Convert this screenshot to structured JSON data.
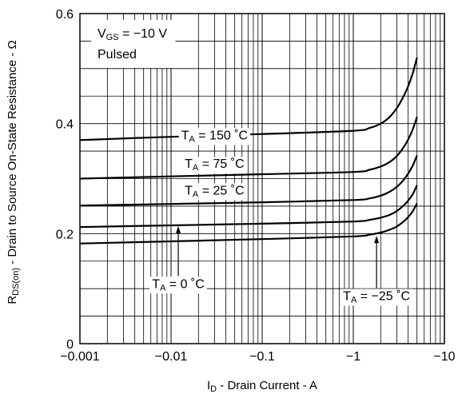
{
  "chart_data": {
    "type": "line",
    "x_scale": "log",
    "x_reversed_sign": true,
    "xlim": [
      -0.001,
      -10
    ],
    "ylim": [
      0,
      0.6
    ],
    "grid": true,
    "x_ticks": [
      {
        "value": -0.001,
        "label": "−0.001"
      },
      {
        "value": -0.01,
        "label": "−0.01"
      },
      {
        "value": -0.1,
        "label": "−0.1"
      },
      {
        "value": -1,
        "label": "−1"
      },
      {
        "value": -10,
        "label": "−10"
      }
    ],
    "y_ticks": [
      {
        "value": 0,
        "label": "0"
      },
      {
        "value": 0.2,
        "label": "0.2"
      },
      {
        "value": 0.4,
        "label": "0.4"
      },
      {
        "value": 0.6,
        "label": "0.6"
      }
    ],
    "xlabel": {
      "main": "I",
      "sub": "D",
      "rest": " - Drain Current - A"
    },
    "ylabel": {
      "main": "R",
      "sub": "DS(on)",
      "rest": " - Drain to Source On-State Resistance - Ω"
    },
    "condition": {
      "line1": {
        "main": "V",
        "sub": "GS",
        "rest": " = −10 V"
      },
      "line2": "Pulsed"
    },
    "series": [
      {
        "name": {
          "main": "T",
          "sub": "A",
          "rest": " = 150 ˚C"
        },
        "x": [
          -0.001,
          -0.01,
          -0.1,
          -1,
          -1.5,
          -2,
          -2.5,
          -3,
          -3.5,
          -4,
          -4.5,
          -5
        ],
        "y": [
          0.37,
          0.376,
          0.381,
          0.387,
          0.392,
          0.4,
          0.412,
          0.428,
          0.447,
          0.468,
          0.492,
          0.52
        ]
      },
      {
        "name": {
          "main": "T",
          "sub": "A",
          "rest": " = 75 ˚C"
        },
        "x": [
          -0.001,
          -0.01,
          -0.1,
          -1,
          -1.5,
          -2,
          -2.5,
          -3,
          -3.5,
          -4,
          -4.5,
          -5
        ],
        "y": [
          0.3,
          0.304,
          0.308,
          0.312,
          0.316,
          0.322,
          0.33,
          0.341,
          0.355,
          0.371,
          0.39,
          0.412
        ]
      },
      {
        "name": {
          "main": "T",
          "sub": "A",
          "rest": " = 25 ˚C"
        },
        "x": [
          -0.001,
          -0.01,
          -0.1,
          -1,
          -1.5,
          -2,
          -2.5,
          -3,
          -3.5,
          -4,
          -4.5,
          -5
        ],
        "y": [
          0.251,
          0.254,
          0.257,
          0.261,
          0.264,
          0.269,
          0.276,
          0.285,
          0.296,
          0.309,
          0.324,
          0.342
        ]
      },
      {
        "name": {
          "main": "T",
          "sub": "A",
          "rest": " = 0 ˚C"
        },
        "x": [
          -0.001,
          -0.01,
          -0.1,
          -1,
          -1.5,
          -2,
          -2.5,
          -3,
          -3.5,
          -4,
          -4.5,
          -5
        ],
        "y": [
          0.212,
          0.215,
          0.218,
          0.222,
          0.225,
          0.229,
          0.234,
          0.241,
          0.25,
          0.26,
          0.272,
          0.288
        ]
      },
      {
        "name": {
          "main": "T",
          "sub": "A",
          "rest": " = −25 ˚C"
        },
        "x": [
          -0.001,
          -0.01,
          -0.1,
          -1,
          -1.5,
          -2,
          -2.5,
          -3,
          -3.5,
          -4,
          -4.5,
          -5
        ],
        "y": [
          0.182,
          0.186,
          0.19,
          0.195,
          0.198,
          0.202,
          0.207,
          0.213,
          0.221,
          0.23,
          0.241,
          0.255
        ]
      }
    ],
    "annotations": [
      {
        "series_index": 0,
        "at_x": -0.03,
        "at_y": 0.38
      },
      {
        "series_index": 1,
        "at_x": -0.03,
        "at_y": 0.328
      },
      {
        "series_index": 2,
        "at_x": -0.03,
        "at_y": 0.28
      },
      {
        "series_index": 3,
        "at_x": -0.012,
        "at_y": 0.11,
        "arrow_to_y": 0.214
      },
      {
        "series_index": 4,
        "at_x": -1.8,
        "at_y": 0.088,
        "arrow_to_y": 0.196
      }
    ]
  }
}
